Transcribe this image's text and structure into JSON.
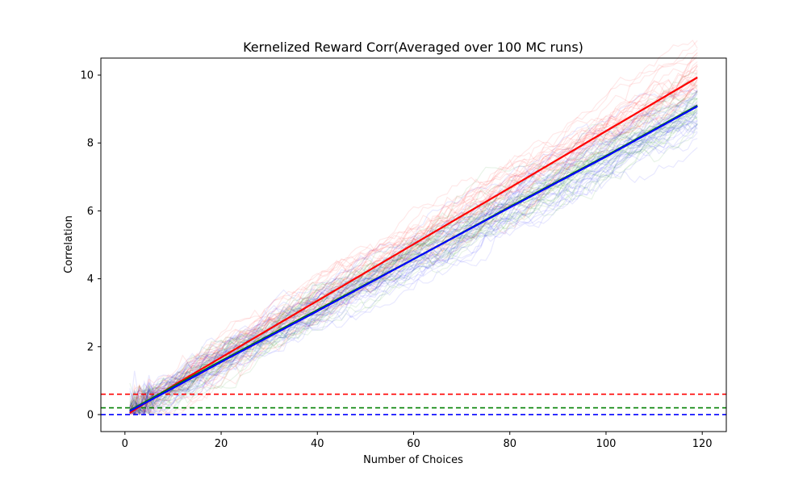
{
  "chart_data": {
    "type": "line",
    "title": "Kernelized Reward Corr(Averaged over 100 MC runs)",
    "xlabel": "Number of Choices",
    "ylabel": "Correlation",
    "xlim": [
      -5,
      125
    ],
    "ylim": [
      -0.5,
      10.5
    ],
    "xticks": [
      "0",
      "20",
      "40",
      "60",
      "80",
      "100",
      "120"
    ],
    "yticks": [
      "0",
      "2",
      "4",
      "6",
      "8",
      "10"
    ],
    "grid": false,
    "legend": "none",
    "mc_runs": 100,
    "series": [
      {
        "color": "#ff0000",
        "x": [
          1,
          10,
          20,
          40,
          60,
          80,
          100,
          119
        ],
        "y": [
          0.05,
          0.85,
          1.68,
          3.35,
          5.02,
          6.68,
          8.35,
          9.93
        ]
      },
      {
        "color": "#008000",
        "x": [
          1,
          10,
          20,
          40,
          60,
          80,
          100,
          119
        ],
        "y": [
          0.12,
          0.82,
          1.58,
          3.08,
          4.58,
          6.12,
          7.62,
          9.1
        ]
      },
      {
        "color": "#0000ff",
        "x": [
          1,
          10,
          20,
          40,
          60,
          80,
          100,
          119
        ],
        "y": [
          0.1,
          0.78,
          1.55,
          3.05,
          4.58,
          6.1,
          7.6,
          9.08
        ]
      }
    ],
    "hlines": [
      {
        "y": 0.6,
        "color": "#ff0000",
        "style": "dashed"
      },
      {
        "y": 0.2,
        "color": "#008000",
        "style": "dashed"
      },
      {
        "y": 0.0,
        "color": "#0000ff",
        "style": "dashed"
      }
    ]
  }
}
